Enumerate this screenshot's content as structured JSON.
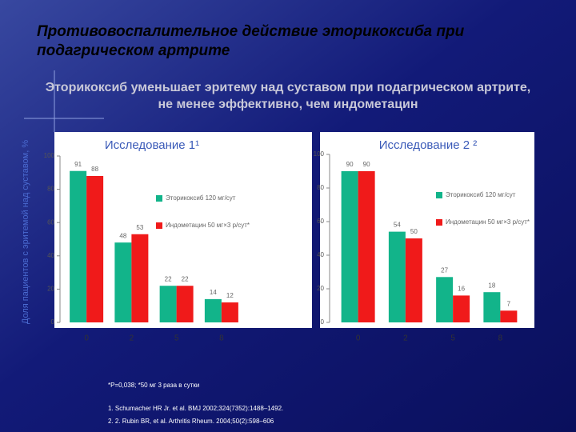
{
  "slide_title": "Противовоспалительное действие эторикоксиба при подагрическом артрите",
  "subtitle": "Эторикоксиб уменьшает эритему над суставом при подагрическом артрите, не менее эффективно, чем индометацин",
  "y_axis_label": "Доля пациентов с эритемой над суставом, %",
  "footnote": "*P=0,038; *50 мг 3 раза в сутки",
  "references": [
    "1. Schumacher HR Jr. et al. BMJ 2002;324(7352):1488–1492.",
    "2. 2. Rubin BR, et al. Arthritis Rheum. 2004;50(2):598–606"
  ],
  "chart_data": [
    {
      "type": "bar",
      "title": "Исследование 1¹",
      "categories": [
        "0",
        "2",
        "5",
        "8"
      ],
      "series": [
        {
          "name": "Эторикоксиб 120 мг/сут",
          "color": "#12b48a",
          "values": [
            91,
            48,
            22,
            14
          ]
        },
        {
          "name": "Индометацин 50 мг×3 р/сут*",
          "color": "#f01a1a",
          "values": [
            88,
            53,
            22,
            12
          ]
        }
      ],
      "ylim": [
        0,
        100
      ],
      "yticks": [
        0,
        20,
        40,
        60,
        80,
        100
      ]
    },
    {
      "type": "bar",
      "title": "Исследование 2 ²",
      "categories": [
        "0",
        "2",
        "5",
        "8"
      ],
      "series": [
        {
          "name": "Эторикоксиб 120 мг/сут",
          "color": "#12b48a",
          "values": [
            90,
            54,
            27,
            18
          ]
        },
        {
          "name": "Индометацин 50 мг×3 р/сут*",
          "color": "#f01a1a",
          "values": [
            90,
            50,
            16,
            7
          ]
        }
      ],
      "ylim": [
        0,
        100
      ],
      "yticks": [
        0,
        20,
        40,
        60,
        80,
        100
      ]
    }
  ]
}
